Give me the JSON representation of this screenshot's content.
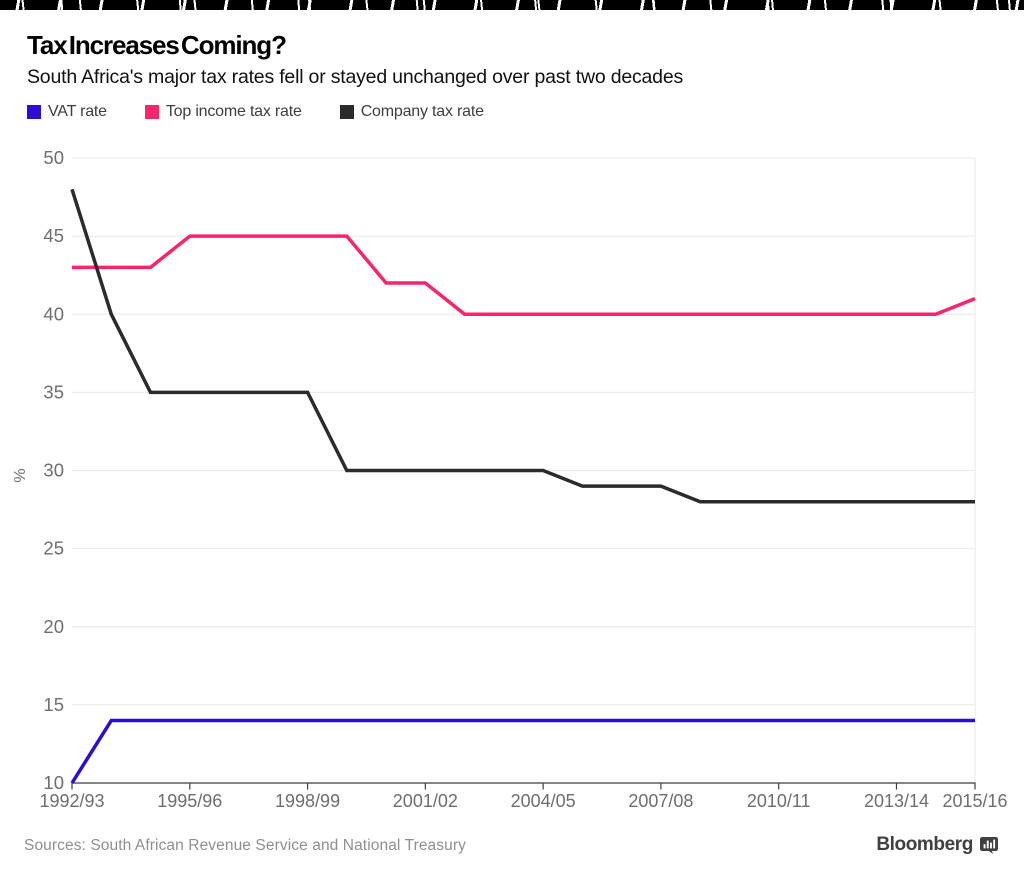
{
  "header": {
    "title": "Tax Increases Coming?",
    "subtitle": "South Africa's major tax rates fell or stayed unchanged over past two decades"
  },
  "legend": {
    "items": [
      {
        "label": "VAT rate",
        "color": "#2d0dd6"
      },
      {
        "label": "Top income tax rate",
        "color": "#f8256d"
      },
      {
        "label": "Company tax rate",
        "color": "#2b2b2b"
      }
    ]
  },
  "chart_data": {
    "type": "line",
    "title": "Tax Increases Coming?",
    "subtitle": "South Africa's major tax rates fell or stayed unchanged over past two decades",
    "ylabel": "%",
    "ylim": [
      10,
      50
    ],
    "yticks": [
      10,
      15,
      20,
      25,
      30,
      35,
      40,
      45,
      50
    ],
    "grid": "horizontal",
    "legend_position": "top-left",
    "x": [
      "1992/93",
      "1993/94",
      "1994/95",
      "1995/96",
      "1996/97",
      "1997/98",
      "1998/99",
      "1999/00",
      "2000/01",
      "2001/02",
      "2002/03",
      "2003/04",
      "2004/05",
      "2005/06",
      "2006/07",
      "2007/08",
      "2008/09",
      "2009/10",
      "2010/11",
      "2011/12",
      "2012/13",
      "2013/14",
      "2014/15",
      "2015/16"
    ],
    "xticks": [
      "1992/93",
      "1995/96",
      "1998/99",
      "2001/02",
      "2004/05",
      "2007/08",
      "2010/11",
      "2013/14",
      "2015/16"
    ],
    "series": [
      {
        "name": "VAT rate",
        "color": "#2d0dd6",
        "values": [
          10,
          14,
          14,
          14,
          14,
          14,
          14,
          14,
          14,
          14,
          14,
          14,
          14,
          14,
          14,
          14,
          14,
          14,
          14,
          14,
          14,
          14,
          14,
          14
        ]
      },
      {
        "name": "Top income tax rate",
        "color": "#f8256d",
        "values": [
          43,
          43,
          43,
          45,
          45,
          45,
          45,
          45,
          42,
          42,
          40,
          40,
          40,
          40,
          40,
          40,
          40,
          40,
          40,
          40,
          40,
          40,
          40,
          41
        ]
      },
      {
        "name": "Company tax rate",
        "color": "#2b2b2b",
        "values": [
          48,
          40,
          35,
          35,
          35,
          35,
          35,
          30,
          30,
          30,
          30,
          30,
          30,
          29,
          29,
          29,
          28,
          28,
          28,
          28,
          28,
          28,
          28,
          28
        ]
      }
    ],
    "colors": {
      "gridline": "#e8e8ea",
      "axis": "#3d3d3d",
      "tick_label": "#6e6e6e"
    }
  },
  "footer": {
    "sources": "Sources: South African Revenue Service and National Treasury",
    "brand": "Bloomberg"
  }
}
